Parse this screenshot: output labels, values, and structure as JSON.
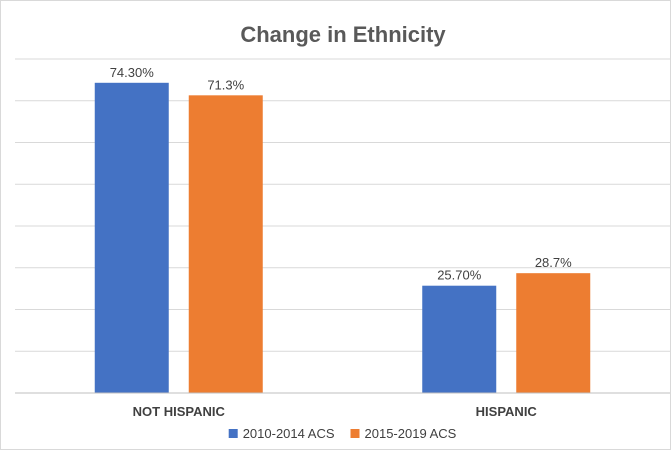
{
  "chart_data": {
    "type": "bar",
    "title": "Change in Ethnicity",
    "categories": [
      "NOT HISPANIC",
      "HISPANIC"
    ],
    "series": [
      {
        "name": "2010-2014 ACS",
        "color": "#4472c4",
        "values": [
          74.3,
          25.7
        ],
        "labels": [
          "74.30%",
          "25.70%"
        ]
      },
      {
        "name": "2015-2019 ACS",
        "color": "#ed7d31",
        "values": [
          71.3,
          28.7
        ],
        "labels": [
          "71.3%",
          "28.7%"
        ]
      }
    ],
    "ylim": [
      0,
      80
    ],
    "grid": true,
    "legend": "bottom"
  }
}
